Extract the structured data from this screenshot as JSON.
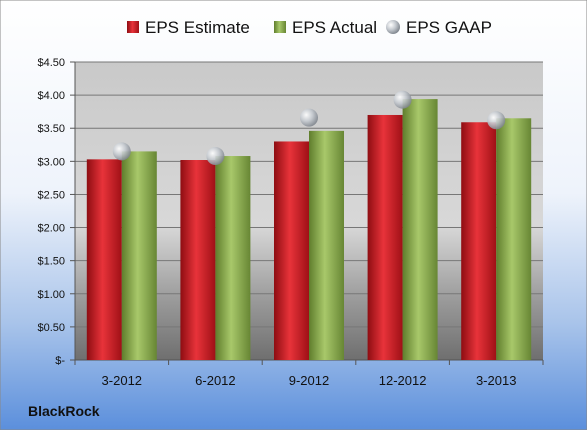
{
  "company": "BlackRock",
  "colors": {
    "estimate": "#c8161d",
    "actual": "#8aac4a",
    "gaap": "#aeb4bc"
  },
  "chart_data": {
    "type": "bar",
    "categories": [
      "3-2012",
      "6-2012",
      "9-2012",
      "12-2012",
      "3-2013"
    ],
    "series": [
      {
        "name": "EPS Estimate",
        "type": "bar",
        "values": [
          3.03,
          3.02,
          3.3,
          3.7,
          3.59
        ]
      },
      {
        "name": "EPS Actual",
        "type": "bar",
        "values": [
          3.15,
          3.08,
          3.46,
          3.94,
          3.65
        ]
      },
      {
        "name": "EPS GAAP",
        "type": "scatter",
        "values": [
          3.15,
          3.08,
          3.66,
          3.93,
          3.62
        ]
      }
    ],
    "yticks": [
      "$-",
      "$0.50",
      "$1.00",
      "$1.50",
      "$2.00",
      "$2.50",
      "$3.00",
      "$3.50",
      "$4.00",
      "$4.50"
    ],
    "ylim": [
      0,
      4.5
    ],
    "grid": true,
    "legend": "top"
  }
}
